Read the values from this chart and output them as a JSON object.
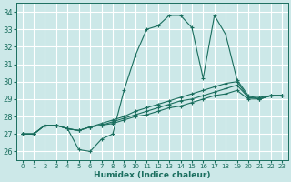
{
  "title": "",
  "xlabel": "Humidex (Indice chaleur)",
  "xlim": [
    -0.5,
    23.5
  ],
  "ylim": [
    25.5,
    34.5
  ],
  "xticks": [
    0,
    1,
    2,
    3,
    4,
    5,
    6,
    7,
    8,
    9,
    10,
    11,
    12,
    13,
    14,
    15,
    16,
    17,
    18,
    19,
    20,
    21,
    22,
    23
  ],
  "yticks": [
    26,
    27,
    28,
    29,
    30,
    31,
    32,
    33,
    34
  ],
  "background_color": "#cce8e8",
  "grid_color": "#ffffff",
  "line_color": "#1a6e5e",
  "lines": [
    [
      27.0,
      27.0,
      27.5,
      27.5,
      27.3,
      26.1,
      26.0,
      26.7,
      27.0,
      29.5,
      31.5,
      33.0,
      33.2,
      33.8,
      33.8,
      33.1,
      30.2,
      33.8,
      32.7,
      30.1,
      29.2,
      29.0,
      29.2,
      29.2
    ],
    [
      27.0,
      27.0,
      27.5,
      27.5,
      27.3,
      27.2,
      27.4,
      27.6,
      27.8,
      28.0,
      28.3,
      28.5,
      28.7,
      28.9,
      29.1,
      29.3,
      29.5,
      29.7,
      29.9,
      30.0,
      29.1,
      29.1,
      29.2,
      29.2
    ],
    [
      27.0,
      27.0,
      27.5,
      27.5,
      27.3,
      27.2,
      27.4,
      27.5,
      27.7,
      27.9,
      28.1,
      28.3,
      28.5,
      28.7,
      28.9,
      29.0,
      29.2,
      29.4,
      29.6,
      29.8,
      29.1,
      29.0,
      29.2,
      29.2
    ],
    [
      27.0,
      27.0,
      27.5,
      27.5,
      27.3,
      27.2,
      27.4,
      27.5,
      27.6,
      27.8,
      28.0,
      28.1,
      28.3,
      28.5,
      28.6,
      28.8,
      29.0,
      29.2,
      29.3,
      29.5,
      29.0,
      29.0,
      29.2,
      29.2
    ]
  ],
  "figsize": [
    3.2,
    2.0
  ],
  "dpi": 100
}
